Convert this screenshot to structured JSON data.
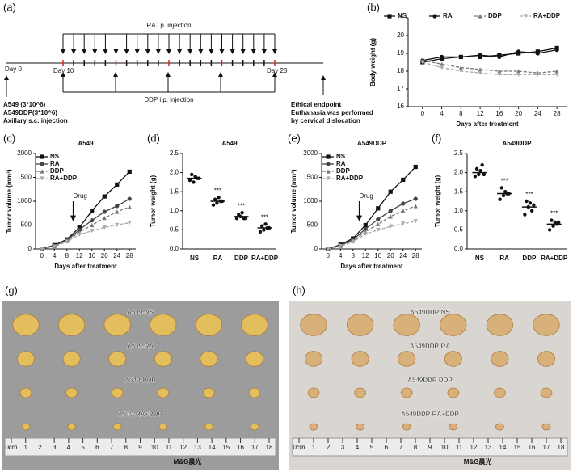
{
  "schematic": {
    "panel": "(a)",
    "ra_label": "RA i.p. injection",
    "ddp_label": "DDP i.p. injection",
    "day0": "Day 0",
    "day10": "Day 10",
    "day28": "Day 28",
    "inoculation": [
      "A549 (3*10^6)",
      "A549DDP(3*10^6)",
      "Axillary s.c. injection"
    ],
    "endpoint": [
      "Ethical endpoint",
      "Euthanasia was performed",
      "by cervical dislocation"
    ]
  },
  "chart_data": [
    {
      "type": "line",
      "panel": "(b)",
      "xlabel": "Days after treatment",
      "ylabel": "Body weight (g)",
      "legend": "top",
      "x": [
        0,
        4,
        8,
        12,
        16,
        20,
        24,
        28
      ],
      "xlim": [
        -3,
        30
      ],
      "xticks": [
        0,
        4,
        8,
        12,
        16,
        20,
        24,
        28
      ],
      "ylim": [
        16,
        21
      ],
      "yticks": [
        16,
        17,
        18,
        19,
        20,
        21
      ],
      "series": [
        {
          "name": "NS",
          "color": "#111111",
          "marker": "square",
          "dash": "none",
          "values": [
            18.5,
            18.7,
            18.8,
            18.8,
            18.9,
            19.0,
            19.1,
            19.3
          ]
        },
        {
          "name": "RA",
          "color": "#111111",
          "marker": "circle",
          "dash": "none",
          "values": [
            18.6,
            18.8,
            18.8,
            18.9,
            18.8,
            19.1,
            19.0,
            19.2
          ]
        },
        {
          "name": "DDP",
          "color": "#777777",
          "marker": "triangle",
          "dash": "4 2",
          "values": [
            18.6,
            18.4,
            18.2,
            18.1,
            18.0,
            18.0,
            17.9,
            18.0
          ]
        },
        {
          "name": "RA+DDP",
          "color": "#aaaaaa",
          "marker": "triangle-down",
          "dash": "4 2",
          "values": [
            18.5,
            18.2,
            18.0,
            17.9,
            17.8,
            17.8,
            17.8,
            17.8
          ]
        }
      ]
    },
    {
      "type": "line",
      "panel": "(c)",
      "title": "A549",
      "xlabel": "Days after treatment",
      "ylabel": "Tumor volume (mm³)",
      "legend": "top-left",
      "annotation": {
        "text": "Drug",
        "x": 10
      },
      "x": [
        0,
        4,
        8,
        12,
        16,
        20,
        24,
        28
      ],
      "xlim": [
        -2,
        30
      ],
      "xticks": [
        0,
        4,
        8,
        12,
        16,
        20,
        24,
        28
      ],
      "ylim": [
        0,
        2000
      ],
      "yticks": [
        0,
        500,
        1000,
        1500,
        2000
      ],
      "series": [
        {
          "name": "NS",
          "color": "#111111",
          "marker": "square",
          "dash": "none",
          "values": [
            0,
            80,
            200,
            450,
            800,
            1100,
            1350,
            1620
          ]
        },
        {
          "name": "RA",
          "color": "#444444",
          "marker": "circle",
          "dash": "none",
          "values": [
            0,
            70,
            180,
            400,
            600,
            780,
            900,
            1050
          ]
        },
        {
          "name": "DDP",
          "color": "#777777",
          "marker": "triangle",
          "dash": "4 2",
          "values": [
            0,
            60,
            170,
            350,
            500,
            650,
            780,
            880
          ]
        },
        {
          "name": "RA+DDP",
          "color": "#aaaaaa",
          "marker": "triangle-down",
          "dash": "4 2",
          "values": [
            0,
            50,
            150,
            300,
            380,
            450,
            500,
            550
          ]
        }
      ]
    },
    {
      "type": "dot",
      "panel": "(d)",
      "title": "A549",
      "ylabel": "Tumor weight (g)",
      "categories": [
        "NS",
        "RA",
        "DDP",
        "RA+DDP"
      ],
      "values": [
        1.85,
        1.25,
        0.85,
        0.55
      ],
      "points": [
        [
          1.8,
          1.95,
          1.75,
          1.9,
          1.85,
          1.85
        ],
        [
          1.15,
          1.3,
          1.2,
          1.35,
          1.25,
          1.25
        ],
        [
          0.8,
          0.9,
          0.85,
          0.95,
          0.8,
          0.8
        ],
        [
          0.45,
          0.6,
          0.5,
          0.65,
          0.55,
          0.55
        ]
      ],
      "sig_labels": [
        null,
        "***",
        "***",
        "***"
      ],
      "ylim": [
        0,
        2.5
      ],
      "yticks": [
        {
          "value": 0,
          "label": "0.0"
        },
        0.5,
        {
          "value": 1,
          "label": "1.0"
        },
        1.5,
        {
          "value": 2,
          "label": "2.0"
        },
        2.5
      ]
    },
    {
      "type": "line",
      "panel": "(e)",
      "title": "A549DDP",
      "xlabel": "Days after treatment",
      "ylabel": "Tumor volume (mm³)",
      "legend": "top-left",
      "annotation": {
        "text": "Drug",
        "x": 10
      },
      "x": [
        0,
        4,
        8,
        12,
        16,
        20,
        24,
        28
      ],
      "xlim": [
        -2,
        30
      ],
      "xticks": [
        0,
        4,
        8,
        12,
        16,
        20,
        24,
        28
      ],
      "ylim": [
        0,
        2000
      ],
      "yticks": [
        0,
        500,
        1000,
        1500,
        2000
      ],
      "series": [
        {
          "name": "NS",
          "color": "#111111",
          "marker": "square",
          "dash": "none",
          "values": [
            0,
            90,
            220,
            500,
            850,
            1200,
            1450,
            1720
          ]
        },
        {
          "name": "RA",
          "color": "#444444",
          "marker": "circle",
          "dash": "none",
          "values": [
            0,
            75,
            190,
            420,
            620,
            800,
            950,
            1050
          ]
        },
        {
          "name": "DDP",
          "color": "#777777",
          "marker": "triangle",
          "dash": "4 2",
          "values": [
            0,
            65,
            170,
            360,
            520,
            680,
            800,
            900
          ]
        },
        {
          "name": "RA+DDP",
          "color": "#aaaaaa",
          "marker": "triangle-down",
          "dash": "4 2",
          "values": [
            0,
            55,
            150,
            310,
            400,
            470,
            530,
            580
          ]
        }
      ]
    },
    {
      "type": "dot",
      "panel": "(f)",
      "title": "A549DDP",
      "ylabel": "Tumor weight (g)",
      "categories": [
        "NS",
        "RA",
        "DDP",
        "RA+DDP"
      ],
      "values": [
        2.0,
        1.45,
        1.1,
        0.65
      ],
      "points": [
        [
          1.9,
          2.1,
          1.95,
          2.05,
          2.2,
          1.95
        ],
        [
          1.3,
          1.6,
          1.4,
          1.5,
          1.45,
          1.45
        ],
        [
          0.9,
          1.25,
          1.1,
          1.2,
          1.0,
          1.15
        ],
        [
          0.5,
          0.75,
          0.6,
          0.7,
          0.65,
          0.7
        ]
      ],
      "sig_labels": [
        null,
        "***",
        "***",
        "***"
      ],
      "ylim": [
        0,
        2.5
      ],
      "yticks": [
        {
          "value": 0,
          "label": "0.0"
        },
        0.5,
        {
          "value": 1,
          "label": "1.0"
        },
        1.5,
        {
          "value": 2,
          "label": "2.0"
        },
        2.5
      ]
    }
  ],
  "photos": [
    {
      "panel": "(g)",
      "labels": [
        "A549-NS",
        "A549-RA",
        "A549-DDP",
        "A549-RA+DDP"
      ],
      "ruler": [
        "0cm",
        "1",
        "2",
        "3",
        "4",
        "5",
        "6",
        "7",
        "8",
        "9",
        "10",
        "11",
        "12",
        "13",
        "14",
        "15",
        "16",
        "17",
        "18"
      ],
      "brand": "M&G晨光"
    },
    {
      "panel": "(h)",
      "labels": [
        "A549DDP-NS",
        "A549DDP-RA",
        "A549DDP-DDP",
        "A549DDP-RA+DDP"
      ],
      "ruler": [
        "0cm",
        "1",
        "2",
        "3",
        "4",
        "5",
        "6",
        "7",
        "8",
        "9",
        "10",
        "11",
        "12",
        "13",
        "14",
        "15",
        "16",
        "17",
        "18"
      ],
      "brand": "M&G晨光"
    }
  ]
}
